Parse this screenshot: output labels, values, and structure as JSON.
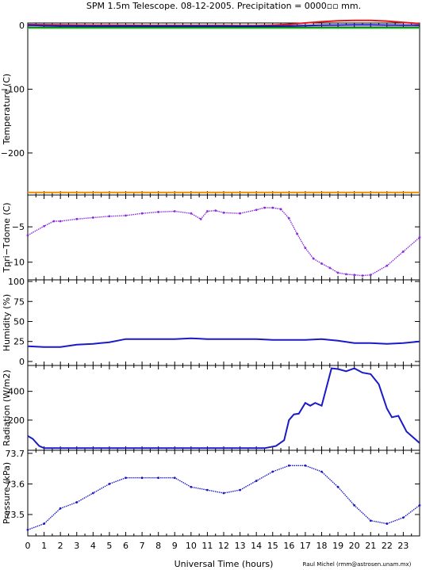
{
  "title": "SPM 1.5m Telescope. 08-12-2005. Precipitation = 0000▫▫ mm.",
  "xlabel": "Universal Time (hours)",
  "credit": "Raul Michel (rmm@astrosen.unam.mx)",
  "x_ticks": [
    "0",
    "1",
    "2",
    "3",
    "4",
    "5",
    "6",
    "7",
    "8",
    "9",
    "10",
    "11",
    "12",
    "13",
    "14",
    "15",
    "16",
    "17",
    "18",
    "19",
    "20",
    "21",
    "22",
    "23"
  ],
  "colors": {
    "red": "#e01818",
    "blue": "#1a1ac8",
    "green": "#22c022",
    "black": "#000000",
    "orange": "#f08a00",
    "purple": "#8a2be2"
  },
  "chart_data": [
    {
      "type": "line",
      "ylabel": "Temperature (C)",
      "ylim": [
        -266,
        4
      ],
      "yticks": [
        "0",
        "−100",
        "−200"
      ],
      "x": [
        0,
        1,
        2,
        3,
        4,
        5,
        6,
        7,
        8,
        9,
        10,
        11,
        12,
        13,
        14,
        15,
        16,
        17,
        18,
        19,
        20,
        21,
        22,
        23,
        24
      ],
      "series": [
        {
          "color": "red",
          "values": [
            1.5,
            1.2,
            1,
            0.8,
            0.6,
            0.5,
            0.4,
            0.3,
            0.2,
            0.2,
            0.2,
            0.1,
            0.1,
            0,
            0,
            0.5,
            2,
            4,
            6,
            7.5,
            8,
            8,
            7,
            5,
            3
          ]
        },
        {
          "color": "blue",
          "values": [
            0.5,
            0,
            -0.3,
            -0.5,
            -0.6,
            -0.7,
            -0.7,
            -0.8,
            -0.8,
            -0.8,
            -0.8,
            -0.9,
            -0.9,
            -1,
            -1,
            -0.8,
            -0.5,
            0,
            0.5,
            0.8,
            1,
            1,
            0.8,
            0.6,
            0.5
          ]
        },
        {
          "color": "black",
          "values": [
            -3,
            -3,
            -3,
            -3,
            -3,
            -3,
            -3,
            -3,
            -3,
            -3,
            -3,
            -3,
            -3,
            -3,
            -3,
            -3,
            -3,
            -3,
            -3,
            -3,
            -3,
            -3,
            -3,
            -3,
            -3
          ]
        },
        {
          "color": "green",
          "values": [
            -4,
            -4,
            -4,
            -4,
            -4,
            -4,
            -4,
            -4,
            -4,
            -4,
            -4,
            -4,
            -4,
            -4,
            -4,
            -4,
            -4,
            -4,
            -4,
            -4,
            -4,
            -4,
            -4,
            -4,
            -4
          ]
        },
        {
          "color": "orange",
          "values": [
            -262,
            -262,
            -262,
            -262,
            -262,
            -262,
            -262,
            -262,
            -262,
            -262,
            -262,
            -262,
            -262,
            -262,
            -262,
            -262,
            -262,
            -262,
            -262,
            -262,
            -262,
            -262,
            -262,
            -262,
            -262
          ]
        }
      ]
    },
    {
      "type": "scatter",
      "ylabel": "Tpri−Tdome (C)",
      "ylim": [
        -12.5,
        -0.5
      ],
      "yticks": [
        "−5",
        "−10"
      ],
      "x": [
        0,
        1,
        1.6,
        2,
        3,
        4,
        5,
        6,
        7,
        8,
        9,
        10,
        10.6,
        11,
        11.5,
        12,
        13,
        14,
        14.5,
        15,
        15.5,
        16,
        16.5,
        17,
        17.5,
        18,
        18.5,
        19,
        19.5,
        20,
        20.5,
        21,
        22,
        23,
        24
      ],
      "series": [
        {
          "color": "purple",
          "values": [
            -6.2,
            -4.9,
            -4.2,
            -4.2,
            -3.9,
            -3.7,
            -3.5,
            -3.4,
            -3.1,
            -2.9,
            -2.8,
            -3.1,
            -3.9,
            -2.8,
            -2.7,
            -3.0,
            -3.1,
            -2.6,
            -2.3,
            -2.3,
            -2.5,
            -3.8,
            -6,
            -8,
            -9.5,
            -10.2,
            -10.8,
            -11.5,
            -11.7,
            -11.8,
            -11.9,
            -11.8,
            -10.5,
            -8.5,
            -6.5
          ]
        }
      ]
    },
    {
      "type": "line",
      "ylabel": "Humidity (%)",
      "ylim": [
        -5,
        102
      ],
      "yticks": [
        "0",
        "25",
        "50",
        "75",
        "100"
      ],
      "x": [
        0,
        1,
        2,
        3,
        4,
        5,
        6,
        7,
        8,
        9,
        10,
        11,
        12,
        13,
        14,
        15,
        16,
        17,
        18,
        19,
        20,
        21,
        22,
        23,
        24
      ],
      "series": [
        {
          "color": "blue",
          "values": [
            19,
            18,
            18,
            21,
            22,
            24,
            28,
            28,
            28,
            28,
            29,
            28,
            28,
            28,
            28,
            27,
            27,
            27,
            28,
            26,
            23,
            23,
            22,
            23,
            25
          ]
        }
      ]
    },
    {
      "type": "line",
      "ylabel": "Radiation (W/m2)",
      "ylim": [
        -10,
        580
      ],
      "yticks": [
        "200",
        "400"
      ],
      "x": [
        0,
        0.3,
        0.7,
        1,
        5,
        10,
        14.5,
        15.2,
        15.7,
        16,
        16.3,
        16.6,
        17,
        17.3,
        17.6,
        18,
        18.3,
        18.6,
        19,
        19.5,
        20,
        20.5,
        21,
        21.5,
        22,
        22.3,
        22.7,
        23.2,
        24
      ],
      "series": [
        {
          "color": "blue",
          "values": [
            90,
            70,
            20,
            5,
            5,
            5,
            5,
            20,
            60,
            200,
            240,
            245,
            320,
            300,
            320,
            300,
            430,
            560,
            555,
            540,
            560,
            530,
            520,
            450,
            280,
            220,
            230,
            120,
            40
          ]
        }
      ]
    },
    {
      "type": "scatter",
      "ylabel": "Pressure (kPa)",
      "ylim": [
        73.43,
        73.71
      ],
      "yticks": [
        "73.5",
        "73.6",
        "73.7"
      ],
      "x": [
        0,
        1,
        2,
        3,
        4,
        5,
        6,
        7,
        8,
        9,
        10,
        11,
        12,
        13,
        14,
        15,
        16,
        17,
        18,
        19,
        20,
        21,
        22,
        23,
        24
      ],
      "series": [
        {
          "color": "blue",
          "values": [
            73.45,
            73.47,
            73.52,
            73.54,
            73.57,
            73.6,
            73.62,
            73.62,
            73.62,
            73.62,
            73.59,
            73.58,
            73.57,
            73.58,
            73.61,
            73.64,
            73.66,
            73.66,
            73.64,
            73.59,
            73.53,
            73.48,
            73.47,
            73.49,
            73.53
          ]
        }
      ]
    }
  ]
}
